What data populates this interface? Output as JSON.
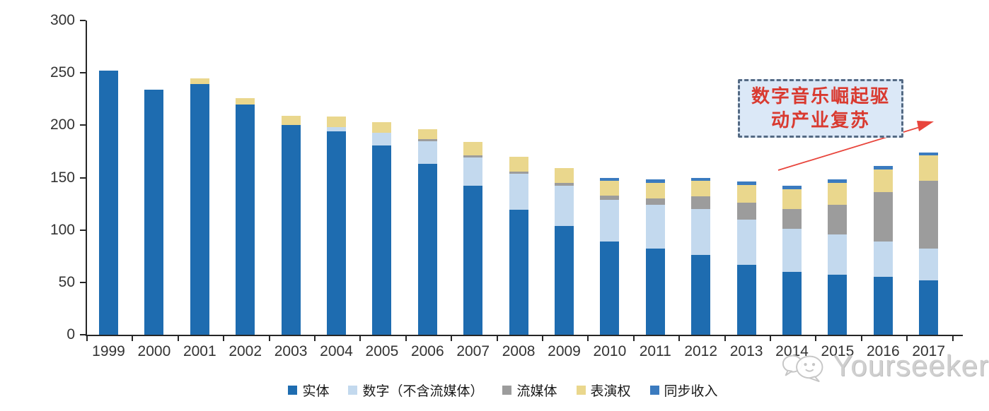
{
  "chart_data": {
    "type": "bar",
    "stacked": true,
    "title": "",
    "xlabel": "",
    "ylabel": "",
    "categories": [
      "1999",
      "2000",
      "2001",
      "2002",
      "2003",
      "2004",
      "2005",
      "2006",
      "2007",
      "2008",
      "2009",
      "2010",
      "2011",
      "2012",
      "2013",
      "2014",
      "2015",
      "2016",
      "2017"
    ],
    "series": [
      {
        "name": "实体",
        "color": "#1E6CB0",
        "values": [
          252,
          234,
          239,
          220,
          200,
          194,
          181,
          163,
          142,
          119,
          104,
          89,
          82,
          76,
          67,
          60,
          57,
          55,
          52
        ]
      },
      {
        "name": "数字（不含流媒体）",
        "color": "#C3D9EE",
        "values": [
          0,
          0,
          0,
          0,
          0,
          4,
          12,
          22,
          27,
          35,
          38,
          40,
          42,
          44,
          43,
          41,
          39,
          34,
          30
        ]
      },
      {
        "name": "流媒体",
        "color": "#9C9C9C",
        "values": [
          0,
          0,
          0,
          0,
          0,
          0,
          0,
          2,
          2,
          2,
          3,
          4,
          6,
          12,
          16,
          19,
          28,
          47,
          65
        ]
      },
      {
        "name": "表演权",
        "color": "#EAD78D",
        "values": [
          0,
          0,
          6,
          6,
          9,
          10,
          10,
          9,
          13,
          14,
          14,
          14,
          15,
          15,
          17,
          19,
          21,
          22,
          24
        ]
      },
      {
        "name": "同步收入",
        "color": "#3B7BBF",
        "values": [
          0,
          0,
          0,
          0,
          0,
          0,
          0,
          0,
          0,
          0,
          0,
          3,
          3,
          3,
          3,
          3,
          3,
          3,
          3
        ]
      }
    ],
    "ylim": [
      0,
      300
    ],
    "yticks": [
      0,
      50,
      100,
      150,
      200,
      250,
      300
    ],
    "grid": false,
    "legend_position": "bottom"
  },
  "annotation": {
    "lines": [
      "数字音乐崛起驱",
      "动产业复苏"
    ],
    "text_color": "#D93A30",
    "border_color": "#546A84",
    "fill_color": "#DBE8F7",
    "arrow_color": "#E8453C"
  },
  "watermark": {
    "text": "Yourseeker"
  },
  "colors": {
    "axis": "#262626",
    "tick_label": "#333333",
    "background": "#FFFFFF"
  }
}
